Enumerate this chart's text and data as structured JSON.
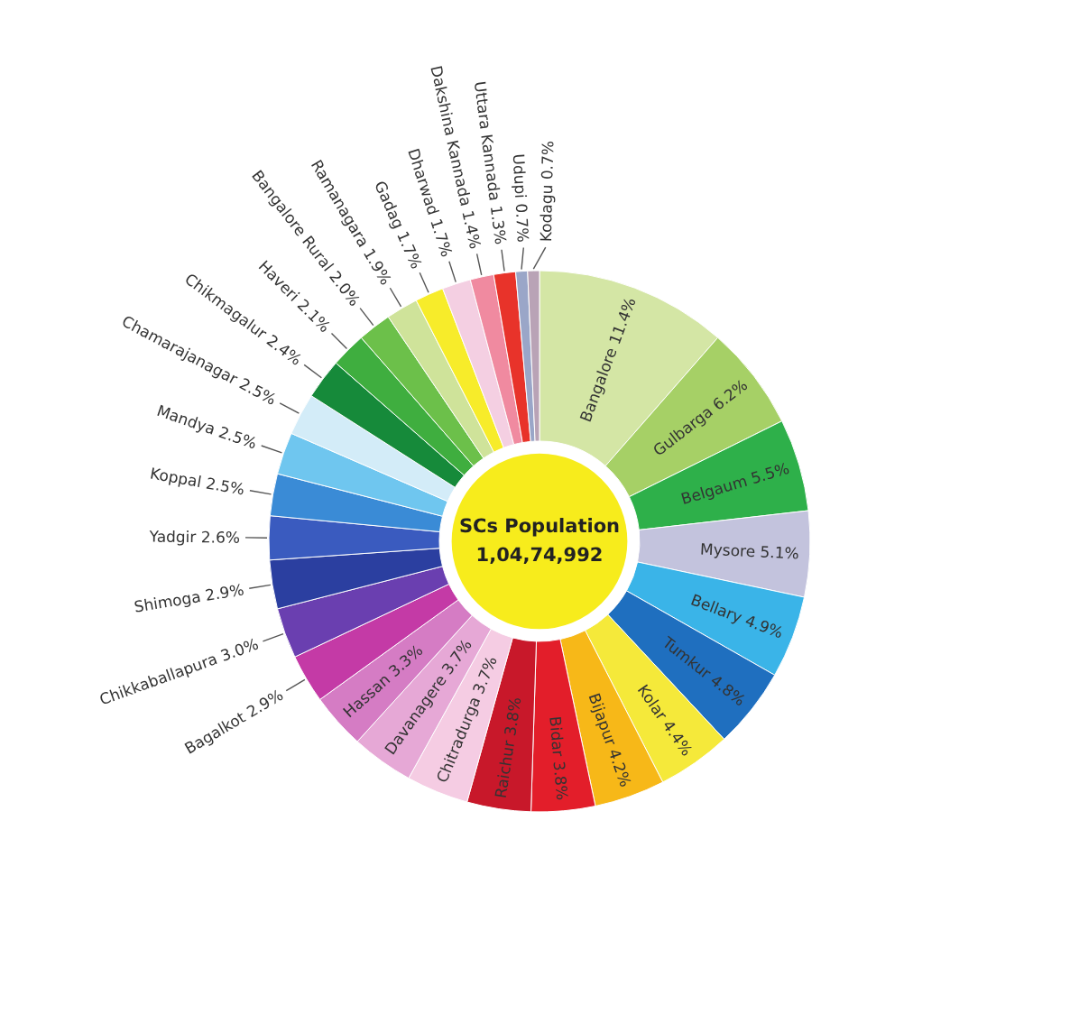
{
  "chart_data": {
    "type": "donut",
    "title": "SCs Population",
    "subtitle": "1,04,74,992",
    "categories": [
      "Bangalore",
      "Gulbarga",
      "Belgaum",
      "Mysore",
      "Bellary",
      "Tumkur",
      "Kolar",
      "Bijapur",
      "Bidar",
      "Raichur",
      "Chitradurga",
      "Davanagere",
      "Hassan",
      "Bagalkot",
      "Chikkaballapura",
      "Shimoga",
      "Yadgir",
      "Koppal",
      "Mandya",
      "Chamarajanagar",
      "Chikmagalur",
      "Haveri",
      "Bangalore Rural",
      "Ramanagara",
      "Gadag",
      "Dharwad",
      "Dakshina Kannada",
      "Uttara Kannada",
      "Udupi",
      "Kodagu"
    ],
    "values": [
      11.4,
      6.2,
      5.5,
      5.1,
      4.9,
      4.8,
      4.4,
      4.2,
      3.8,
      3.8,
      3.7,
      3.7,
      3.3,
      2.9,
      3.0,
      2.9,
      2.6,
      2.5,
      2.5,
      2.5,
      2.4,
      2.1,
      2.0,
      1.9,
      1.7,
      1.7,
      1.4,
      1.3,
      0.7,
      0.7
    ],
    "value_labels": [
      "11.4%",
      "6.2%",
      "5.5%",
      "5.1%",
      "4.9%",
      "4.8%",
      "4.4%",
      "4.2%",
      "3.8%",
      "3.8%",
      "3.7%",
      "3.7%",
      "3.3%",
      "2.9%",
      "3.0%",
      "2.9%",
      "2.6%",
      "2.5%",
      "2.5%",
      "2.5%",
      "2.4%",
      "2.1%",
      "2.0%",
      "1.9%",
      "1.7%",
      "1.7%",
      "1.4%",
      "1.3%",
      "0.7%",
      "0.7%"
    ],
    "colors": [
      "#d4e6a5",
      "#a6d066",
      "#2eb04a",
      "#c3c3dd",
      "#3ab4e8",
      "#1f6fbf",
      "#f5e93a",
      "#f7b818",
      "#e31e2a",
      "#c8182a",
      "#f5cce3",
      "#e6a8d6",
      "#d57cc4",
      "#c43aa6",
      "#6a3fb0",
      "#2b3fa0",
      "#3a5bbf",
      "#3a8bd6",
      "#6fc6ef",
      "#d3ecf8",
      "#168a3a",
      "#3fae3f",
      "#6cc04a",
      "#cfe39a",
      "#f7ec2a",
      "#f4cfe2",
      "#f08aa0",
      "#e8332a",
      "#9aa6c8",
      "#b9a3b6"
    ]
  }
}
